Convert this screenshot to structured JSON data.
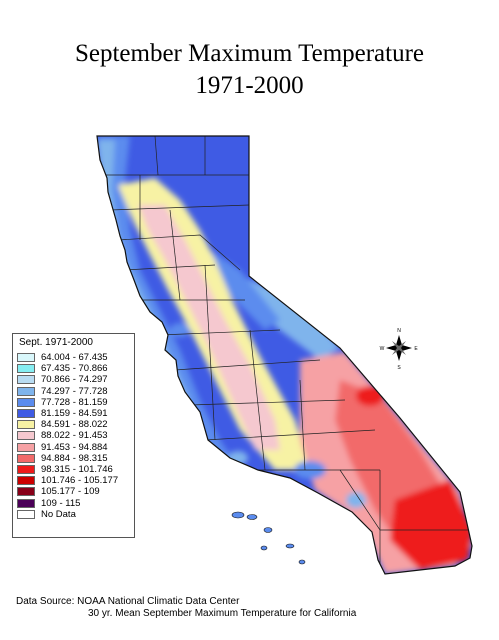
{
  "title": {
    "line1": "September Maximum Temperature",
    "line2": "1971-2000"
  },
  "legend": {
    "title": "Sept. 1971-2000",
    "items": [
      {
        "label": "64.004 - 67.435",
        "color": "#d9f7fb"
      },
      {
        "label": "67.435 - 70.866",
        "color": "#86eef2"
      },
      {
        "label": "70.866 - 74.297",
        "color": "#b9dcf2"
      },
      {
        "label": "74.297 - 77.728",
        "color": "#7fb4ec"
      },
      {
        "label": "77.728 - 81.159",
        "color": "#5b8cee"
      },
      {
        "label": "81.159 - 84.591",
        "color": "#3f5be4"
      },
      {
        "label": "84.591 - 88.022",
        "color": "#f7f2a4"
      },
      {
        "label": "88.022 - 91.453",
        "color": "#f5c8cf"
      },
      {
        "label": "91.453 - 94.884",
        "color": "#f6a1a4"
      },
      {
        "label": "94.884 - 98.315",
        "color": "#f26a6a"
      },
      {
        "label": "98.315 - 101.746",
        "color": "#ee1b1b"
      },
      {
        "label": "101.746 - 105.177",
        "color": "#cc0000"
      },
      {
        "label": "105.177 - 109",
        "color": "#880018"
      },
      {
        "label": "109 - 115",
        "color": "#4b0058"
      },
      {
        "label": "No Data",
        "color": "#ffffff"
      }
    ]
  },
  "compass": {
    "n": "N",
    "s": "S",
    "e": "E",
    "w": "W"
  },
  "source": {
    "line1": "Data Source:  NOAA National Climatic Data Center",
    "line2": "30 yr. Mean September Maximum Temperature for California"
  }
}
